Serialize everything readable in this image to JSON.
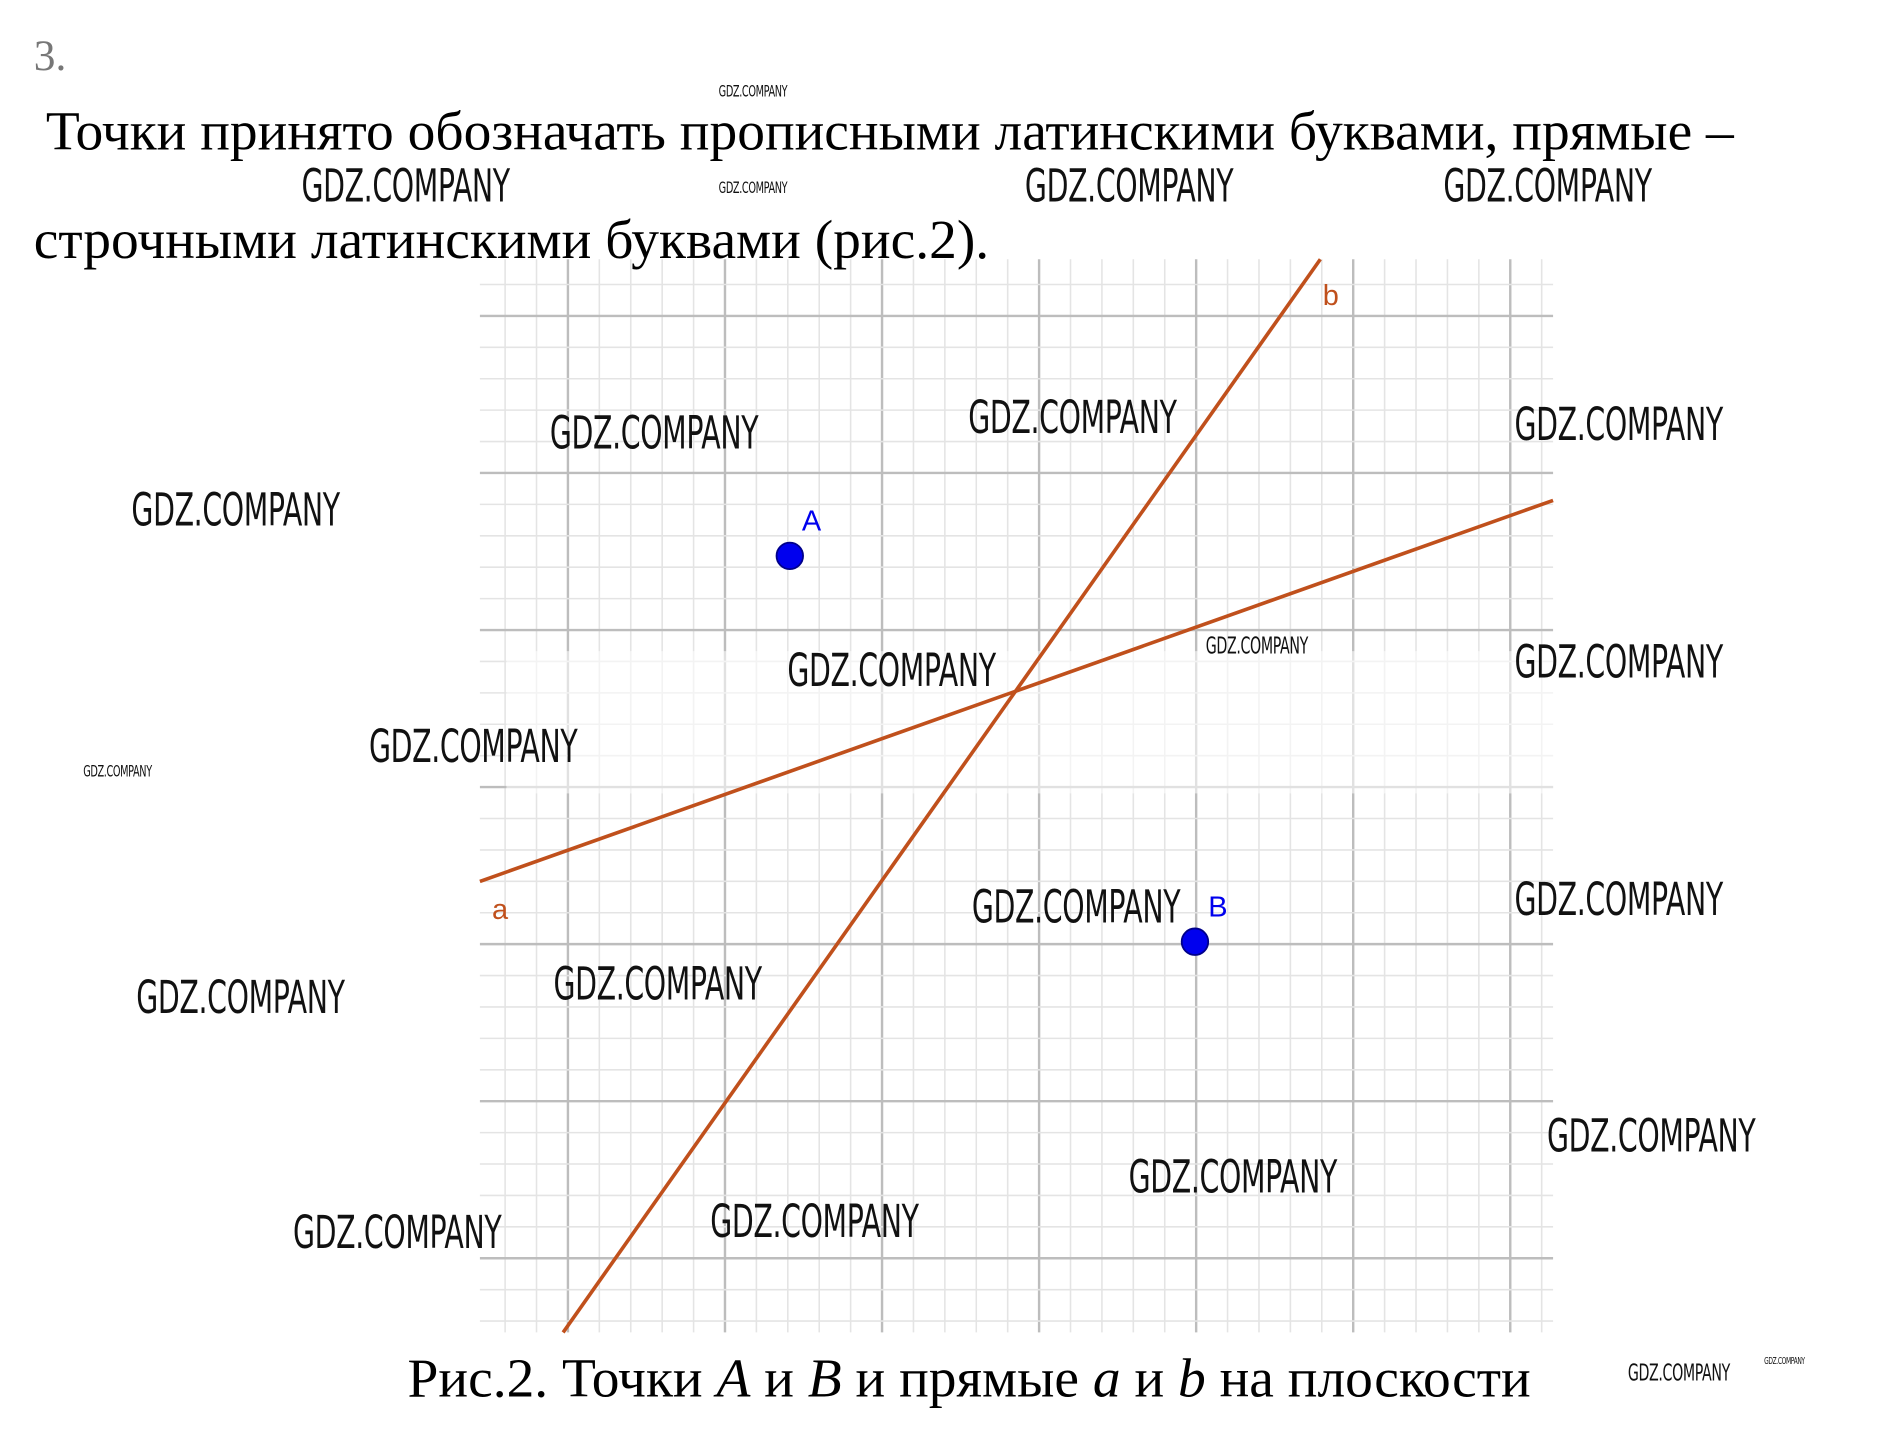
{
  "task_number": "3.",
  "paragraph": {
    "line1": "Точки принято обозначать прописными латинскими буквами, прямые –",
    "line2": "строчными латинскими буквами (рис.2)."
  },
  "figure": {
    "point_labels": {
      "A": "A",
      "B": "B"
    },
    "line_labels": {
      "a": "a",
      "b": "b"
    },
    "colors": {
      "point": "#0000ee",
      "line": "#c0501c",
      "grid_major": "#bdbdbd",
      "grid_minor": "#e4e4e4"
    }
  },
  "caption": {
    "prefix": "Рис.2. Точки ",
    "A": "A",
    "and1": " и ",
    "B": "B",
    "mid": " и прямые ",
    "a": "a",
    "and2": " и ",
    "b": "b",
    "suffix": " на плоскости"
  },
  "watermark": "GDZ.COMPANY"
}
